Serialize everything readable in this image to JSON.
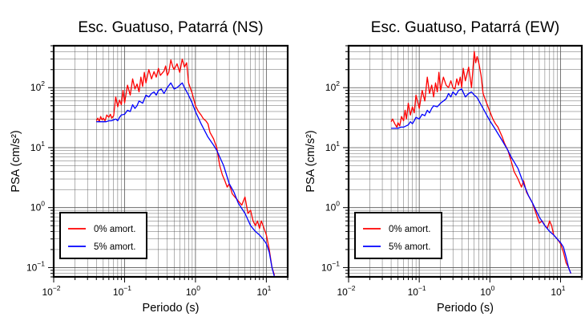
{
  "chart_data": [
    {
      "type": "line",
      "title": "Esc. Guatuso, Patarrá (NS)",
      "xlabel": "Periodo (s)",
      "ylabel": "PSA (cm/s²)",
      "xscale": "log",
      "yscale": "log",
      "xlim": [
        0.01,
        20
      ],
      "ylim": [
        0.07,
        500
      ],
      "grid": true,
      "legend_placement": "bottom-left",
      "x_ticks": [
        {
          "base": "10",
          "exp": "−2"
        },
        {
          "base": "10",
          "exp": "−1"
        },
        {
          "base": "10",
          "exp": "0"
        },
        {
          "base": "10",
          "exp": "1"
        }
      ],
      "y_ticks": [
        {
          "base": "10",
          "exp": "−1"
        },
        {
          "base": "10",
          "exp": "0"
        },
        {
          "base": "10",
          "exp": "1"
        },
        {
          "base": "10",
          "exp": "2"
        }
      ],
      "series": [
        {
          "name": "0% amort.",
          "color": "#ff0000",
          "x": [
            0.04,
            0.042,
            0.044,
            0.046,
            0.048,
            0.05,
            0.053,
            0.056,
            0.06,
            0.063,
            0.066,
            0.07,
            0.075,
            0.08,
            0.085,
            0.09,
            0.095,
            0.1,
            0.11,
            0.12,
            0.13,
            0.14,
            0.15,
            0.16,
            0.17,
            0.18,
            0.19,
            0.2,
            0.22,
            0.24,
            0.26,
            0.28,
            0.3,
            0.32,
            0.34,
            0.36,
            0.38,
            0.4,
            0.42,
            0.45,
            0.48,
            0.5,
            0.55,
            0.6,
            0.65,
            0.7,
            0.75,
            0.8,
            0.9,
            1.0,
            1.1,
            1.2,
            1.3,
            1.4,
            1.5,
            1.6,
            1.8,
            2.0,
            2.2,
            2.4,
            2.6,
            2.8,
            3.0,
            3.3,
            3.6,
            4.0,
            4.5,
            5.0,
            5.5,
            6.0,
            6.5,
            7.0,
            7.5,
            8.0,
            8.5,
            9.0,
            10,
            11,
            12,
            13
          ],
          "y": [
            28,
            31,
            27,
            33,
            29,
            31,
            28,
            35,
            32,
            36,
            31,
            34,
            70,
            48,
            62,
            52,
            90,
            56,
            110,
            75,
            140,
            95,
            115,
            85,
            150,
            105,
            180,
            120,
            200,
            140,
            185,
            150,
            210,
            160,
            175,
            190,
            230,
            160,
            180,
            290,
            220,
            200,
            250,
            180,
            300,
            220,
            260,
            120,
            80,
            50,
            40,
            35,
            30,
            28,
            25,
            18,
            14,
            10,
            5,
            3.5,
            2.8,
            2.2,
            2.5,
            1.7,
            1.5,
            1.3,
            1.1,
            1.5,
            0.8,
            0.9,
            0.6,
            0.5,
            0.6,
            0.45,
            0.6,
            0.5,
            0.35,
            0.2,
            0.1,
            0.075
          ]
        },
        {
          "name": "5% amort.",
          "color": "#0000ff",
          "x": [
            0.04,
            0.045,
            0.05,
            0.055,
            0.06,
            0.065,
            0.07,
            0.075,
            0.08,
            0.085,
            0.09,
            0.1,
            0.11,
            0.12,
            0.13,
            0.14,
            0.15,
            0.16,
            0.18,
            0.2,
            0.22,
            0.24,
            0.26,
            0.28,
            0.3,
            0.33,
            0.36,
            0.4,
            0.45,
            0.5,
            0.55,
            0.6,
            0.65,
            0.7,
            0.8,
            0.9,
            1.0,
            1.2,
            1.5,
            1.8,
            2.0,
            2.5,
            3.0,
            3.5,
            4.0,
            5.0,
            6.0,
            7.0,
            8.0,
            9.0,
            10,
            11,
            12,
            13
          ],
          "y": [
            27,
            27,
            27,
            27,
            28,
            28,
            29,
            30,
            28,
            32,
            35,
            36,
            42,
            40,
            52,
            45,
            50,
            60,
            55,
            75,
            70,
            80,
            85,
            75,
            90,
            95,
            80,
            100,
            120,
            95,
            100,
            110,
            120,
            100,
            75,
            55,
            40,
            25,
            15,
            11,
            9,
            5,
            2.5,
            1.8,
            1.2,
            0.8,
            0.5,
            0.4,
            0.35,
            0.3,
            0.25,
            0.18,
            0.1,
            0.07
          ]
        }
      ]
    },
    {
      "type": "line",
      "title": "Esc. Guatuso, Patarrá (EW)",
      "xlabel": "Periodo (s)",
      "ylabel": "PSA (cm/s²)",
      "xscale": "log",
      "yscale": "log",
      "xlim": [
        0.01,
        20
      ],
      "ylim": [
        0.07,
        500
      ],
      "grid": true,
      "legend_placement": "bottom-left",
      "x_ticks": [
        {
          "base": "10",
          "exp": "−2"
        },
        {
          "base": "10",
          "exp": "−1"
        },
        {
          "base": "10",
          "exp": "0"
        },
        {
          "base": "10",
          "exp": "1"
        }
      ],
      "y_ticks": [
        {
          "base": "10",
          "exp": "−1"
        },
        {
          "base": "10",
          "exp": "0"
        },
        {
          "base": "10",
          "exp": "1"
        },
        {
          "base": "10",
          "exp": "2"
        }
      ],
      "series": [
        {
          "name": "0% amort.",
          "color": "#ff0000",
          "x": [
            0.04,
            0.042,
            0.045,
            0.048,
            0.05,
            0.053,
            0.056,
            0.06,
            0.063,
            0.066,
            0.07,
            0.075,
            0.08,
            0.085,
            0.09,
            0.1,
            0.11,
            0.12,
            0.13,
            0.14,
            0.15,
            0.16,
            0.17,
            0.18,
            0.19,
            0.2,
            0.22,
            0.24,
            0.26,
            0.28,
            0.3,
            0.32,
            0.34,
            0.36,
            0.38,
            0.4,
            0.42,
            0.45,
            0.5,
            0.55,
            0.6,
            0.63,
            0.66,
            0.7,
            0.75,
            0.8,
            0.9,
            1.0,
            1.1,
            1.2,
            1.3,
            1.4,
            1.5,
            1.6,
            1.8,
            2.0,
            2.2,
            2.5,
            2.8,
            3.0,
            3.3,
            3.6,
            4.0,
            4.5,
            5.0,
            5.5,
            6.0,
            6.5,
            7.0,
            7.5,
            8.0,
            9.0,
            10,
            11,
            12,
            13,
            14
          ],
          "y": [
            27,
            30,
            25,
            22,
            26,
            23,
            33,
            28,
            42,
            30,
            55,
            35,
            48,
            38,
            75,
            45,
            90,
            60,
            150,
            80,
            110,
            70,
            120,
            85,
            180,
            90,
            150,
            110,
            100,
            130,
            100,
            95,
            140,
            110,
            150,
            100,
            210,
            130,
            220,
            100,
            400,
            260,
            330,
            250,
            160,
            80,
            55,
            40,
            30,
            25,
            22,
            18,
            15,
            12,
            9,
            6,
            4,
            3,
            2.2,
            2.8,
            1.8,
            1.5,
            1.2,
            0.8,
            0.55,
            0.6,
            0.5,
            0.45,
            0.6,
            0.5,
            0.35,
            0.3,
            0.25,
            0.18,
            0.12,
            0.1,
            0.08
          ]
        },
        {
          "name": "5% amort.",
          "color": "#0000ff",
          "x": [
            0.04,
            0.045,
            0.05,
            0.055,
            0.06,
            0.065,
            0.07,
            0.075,
            0.08,
            0.085,
            0.09,
            0.1,
            0.11,
            0.12,
            0.13,
            0.14,
            0.15,
            0.16,
            0.18,
            0.2,
            0.22,
            0.24,
            0.26,
            0.28,
            0.3,
            0.33,
            0.36,
            0.4,
            0.45,
            0.5,
            0.55,
            0.6,
            0.65,
            0.7,
            0.8,
            0.9,
            1.0,
            1.2,
            1.5,
            1.8,
            2.0,
            2.5,
            3.0,
            3.5,
            4.0,
            5.0,
            6.0,
            7.0,
            8.0,
            9.0,
            10,
            11,
            12,
            13,
            14
          ],
          "y": [
            21,
            21,
            21,
            22,
            22,
            23,
            24,
            27,
            25,
            28,
            32,
            30,
            36,
            34,
            42,
            38,
            45,
            50,
            48,
            55,
            60,
            65,
            80,
            70,
            85,
            75,
            90,
            95,
            70,
            80,
            85,
            75,
            70,
            60,
            45,
            35,
            28,
            20,
            13,
            9,
            7,
            4.5,
            2.5,
            1.6,
            1.2,
            0.7,
            0.5,
            0.4,
            0.35,
            0.3,
            0.26,
            0.22,
            0.15,
            0.1,
            0.08
          ]
        }
      ]
    }
  ]
}
